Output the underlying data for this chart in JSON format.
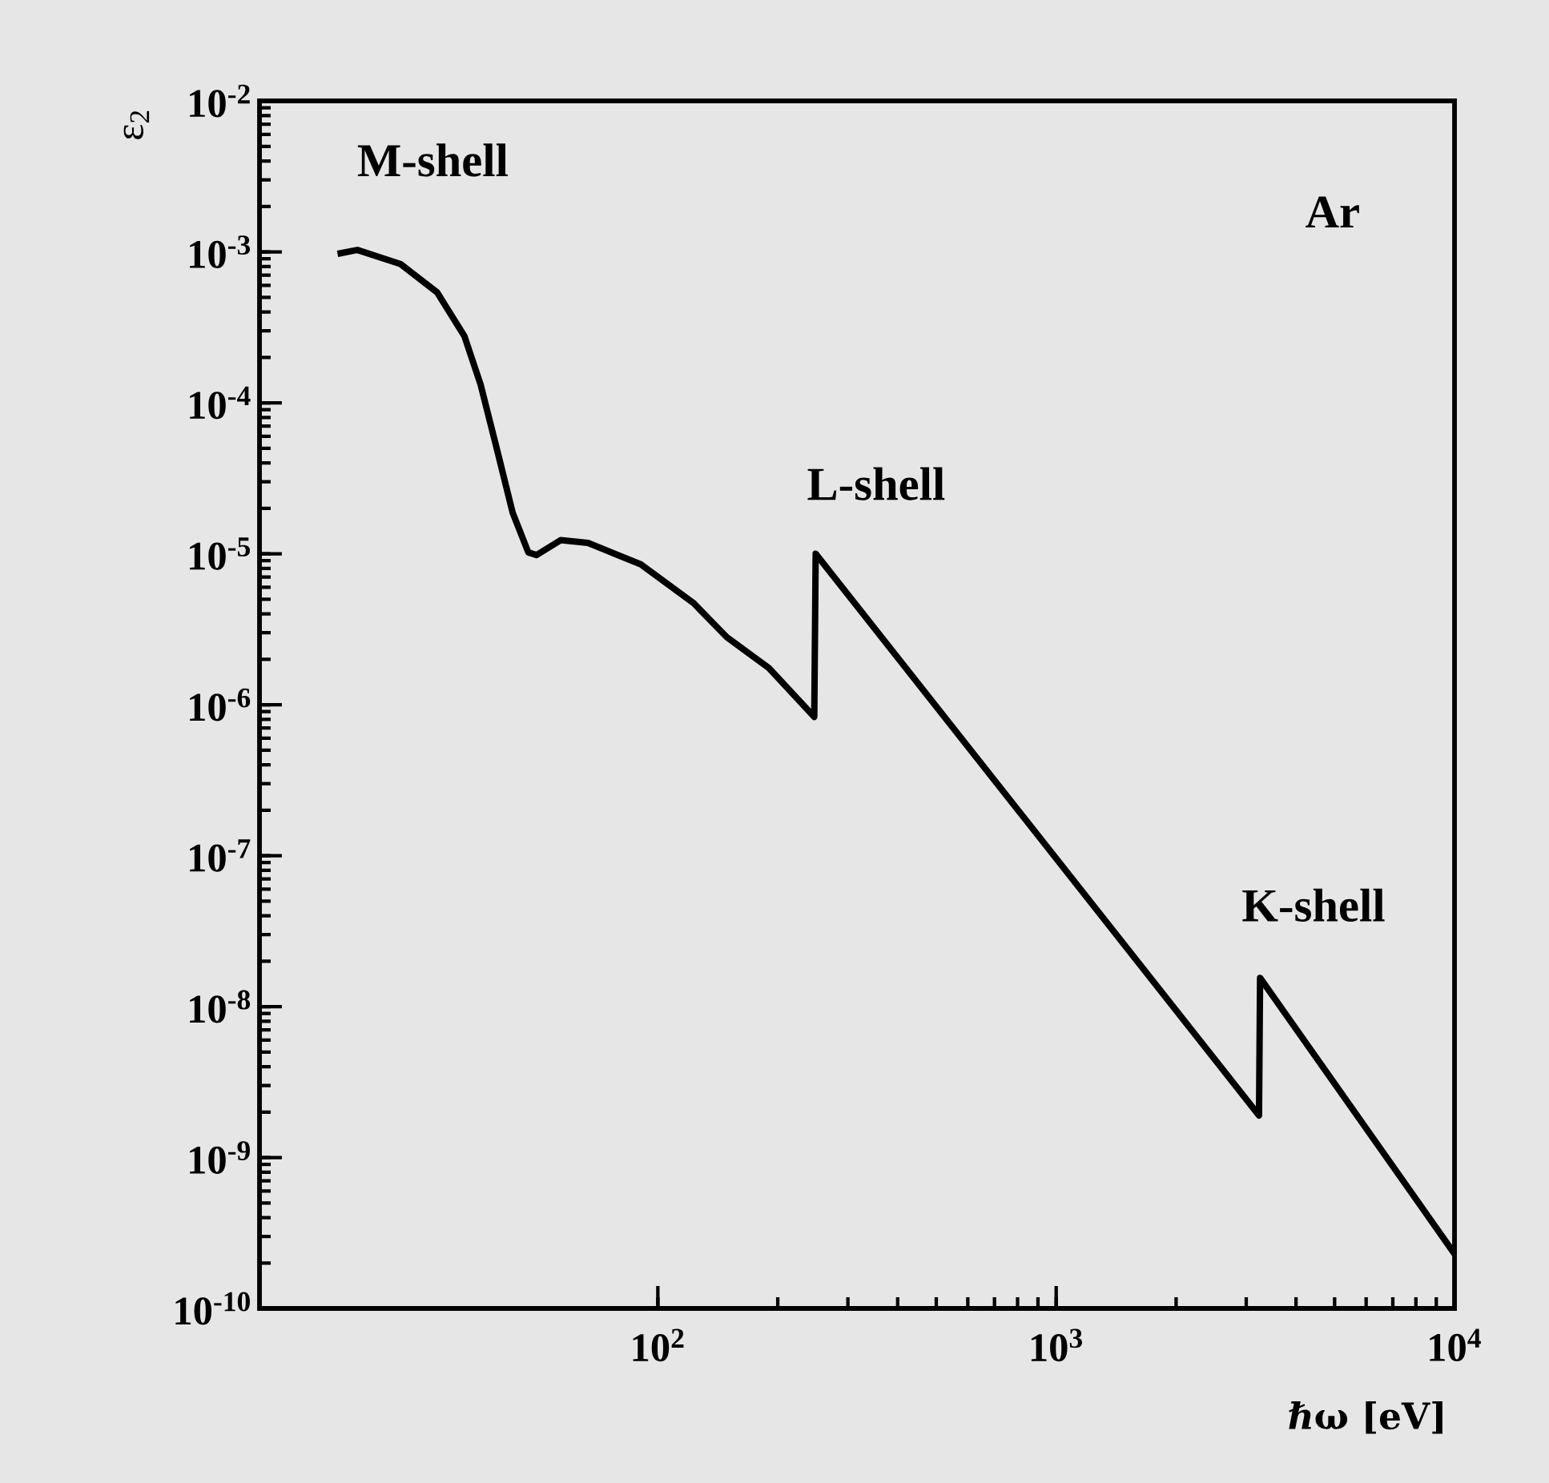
{
  "chart_data": {
    "type": "line",
    "xlabel": "ℏω [eV]",
    "ylabel": "ε$_{2}$",
    "color": "#000000",
    "line_style": "solid",
    "log": "xy",
    "x": [
      15.7,
      17.6,
      22.6,
      27.9,
      32.7,
      35.9,
      39.4,
      43.2,
      47.3,
      49.6,
      57,
      66.8,
      90.6,
      123,
      149,
      190,
      247,
      249,
      3230,
      3250,
      10000
    ],
    "values": [
      0.00097,
      0.00103,
      0.00083,
      0.00054,
      0.000276,
      0.000132,
      5e-05,
      1.87e-05,
      1.02e-05,
      9.8e-06,
      1.23e-05,
      1.18e-05,
      8.5e-06,
      4.7e-06,
      2.8e-06,
      1.75e-06,
      8.3e-07,
      1e-05,
      1.9e-09,
      1.55e-08,
      2.3e-10
    ],
    "xlim": [
      10,
      10000
    ],
    "ylim": [
      1e-10,
      0.01
    ],
    "xticks": [
      {
        "value": 100,
        "label": "10$^{2}$"
      },
      {
        "value": 1000,
        "label": "10$^{3}$"
      },
      {
        "value": 10000,
        "label": "10$^{4}$"
      }
    ],
    "yticks": [
      {
        "value": 1e-10,
        "label": "10$^{-10}$"
      },
      {
        "value": 1e-09,
        "label": "10$^{-9}$"
      },
      {
        "value": 1e-08,
        "label": "10$^{-8}$"
      },
      {
        "value": 1e-07,
        "label": "10$^{-7}$"
      },
      {
        "value": 1e-06,
        "label": "10$^{-6}$"
      },
      {
        "value": 1e-05,
        "label": "10$^{-5}$"
      },
      {
        "value": 0.0001,
        "label": "10$^{-4}$"
      },
      {
        "value": 0.001,
        "label": "10$^{-3}$"
      },
      {
        "value": 0.01,
        "label": "10$^{-2}$"
      }
    ],
    "annotations": [
      "M-shell",
      "L-shell",
      "K-shell",
      "Ar"
    ]
  }
}
